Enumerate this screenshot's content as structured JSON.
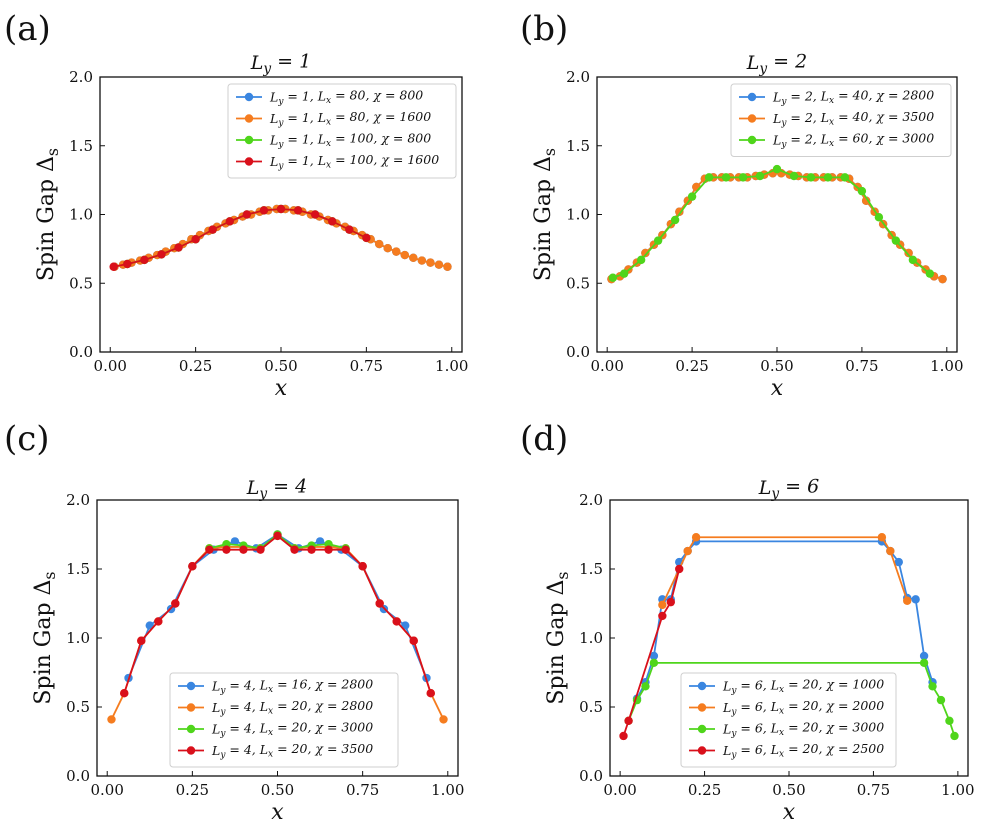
{
  "colors": {
    "blue": "#3a86e0",
    "orange": "#f57c1f",
    "green": "#4fd51b",
    "red": "#d9101b"
  },
  "chart_data": [
    {
      "type": "line",
      "panel_label": "(a)",
      "title": "L_y = 1",
      "xlabel": "x",
      "ylabel": "Spin Gap Δ_s",
      "xlim": [
        -0.03,
        1.03
      ],
      "ylim": [
        0.0,
        2.0
      ],
      "xticks": [
        "0.00",
        "0.25",
        "0.50",
        "0.75",
        "1.00"
      ],
      "yticks": [
        "0.0",
        "0.5",
        "1.0",
        "1.5",
        "2.0"
      ],
      "legend_position": "top-right",
      "series": [
        {
          "name": "L_y = 1, L_x = 80, χ = 800",
          "color": "#3a86e0",
          "x": [
            0.0125,
            0.0375,
            0.0625,
            0.0875,
            0.1125,
            0.1375,
            0.1625,
            0.1875,
            0.2125,
            0.2375,
            0.2625,
            0.2875,
            0.3125,
            0.3375,
            0.3625,
            0.3875,
            0.4125,
            0.4375,
            0.4625,
            0.4875,
            0.5125,
            0.5375,
            0.5625,
            0.5875,
            0.6125,
            0.6375,
            0.6625,
            0.6875,
            0.7125,
            0.7375,
            0.7625,
            0.7875,
            0.8125,
            0.8375,
            0.8625,
            0.8875,
            0.9125,
            0.9375,
            0.9625,
            0.9875
          ],
          "y": [
            0.62,
            0.635,
            0.65,
            0.665,
            0.685,
            0.705,
            0.73,
            0.755,
            0.785,
            0.82,
            0.85,
            0.88,
            0.91,
            0.935,
            0.96,
            0.985,
            1.0,
            1.02,
            1.03,
            1.04,
            1.04,
            1.03,
            1.02,
            1.0,
            0.985,
            0.96,
            0.935,
            0.91,
            0.88,
            0.85,
            0.82,
            0.785,
            0.755,
            0.73,
            0.705,
            0.685,
            0.665,
            0.65,
            0.635,
            0.62
          ]
        },
        {
          "name": "L_y = 1, L_x = 80, χ = 1600",
          "color": "#f57c1f",
          "x": [
            0.0125,
            0.0375,
            0.0625,
            0.0875,
            0.1125,
            0.1375,
            0.1625,
            0.1875,
            0.2125,
            0.2375,
            0.2625,
            0.2875,
            0.3125,
            0.3375,
            0.3625,
            0.3875,
            0.4125,
            0.4375,
            0.4625,
            0.4875,
            0.5125,
            0.5375,
            0.5625,
            0.5875,
            0.6125,
            0.6375,
            0.6625,
            0.6875,
            0.7125,
            0.7375,
            0.7625,
            0.7875,
            0.8125,
            0.8375,
            0.8625,
            0.8875,
            0.9125,
            0.9375,
            0.9625,
            0.9875
          ],
          "y": [
            0.62,
            0.635,
            0.65,
            0.665,
            0.685,
            0.705,
            0.73,
            0.755,
            0.785,
            0.82,
            0.85,
            0.88,
            0.91,
            0.935,
            0.96,
            0.985,
            1.0,
            1.02,
            1.03,
            1.04,
            1.04,
            1.03,
            1.02,
            1.0,
            0.985,
            0.96,
            0.935,
            0.91,
            0.88,
            0.85,
            0.82,
            0.785,
            0.755,
            0.73,
            0.705,
            0.685,
            0.665,
            0.65,
            0.635,
            0.62
          ]
        },
        {
          "name": "L_y = 1, L_x = 100, χ = 800",
          "color": "#4fd51b",
          "x": [
            0.05,
            0.1,
            0.15,
            0.2,
            0.25,
            0.3,
            0.35,
            0.4,
            0.45,
            0.5,
            0.55,
            0.6,
            0.65,
            0.7,
            0.75
          ],
          "y": [
            0.64,
            0.67,
            0.71,
            0.76,
            0.82,
            0.89,
            0.95,
            1.0,
            1.03,
            1.04,
            1.03,
            1.0,
            0.95,
            0.89,
            0.83
          ]
        },
        {
          "name": "L_y = 1, L_x = 100, χ = 1600",
          "color": "#d9101b",
          "x": [
            0.01,
            0.05,
            0.1,
            0.15,
            0.2,
            0.25,
            0.3,
            0.35,
            0.4,
            0.45,
            0.5,
            0.55,
            0.6,
            0.65,
            0.7,
            0.75
          ],
          "y": [
            0.62,
            0.64,
            0.67,
            0.71,
            0.76,
            0.82,
            0.89,
            0.95,
            1.0,
            1.03,
            1.04,
            1.03,
            1.0,
            0.95,
            0.89,
            0.83
          ]
        }
      ]
    },
    {
      "type": "line",
      "panel_label": "(b)",
      "title": "L_y = 2",
      "xlabel": "x",
      "ylabel": "Spin Gap Δ_s",
      "xlim": [
        -0.03,
        1.03
      ],
      "ylim": [
        0.0,
        2.0
      ],
      "xticks": [
        "0.00",
        "0.25",
        "0.50",
        "0.75",
        "1.00"
      ],
      "yticks": [
        "0.0",
        "0.5",
        "1.0",
        "1.5",
        "2.0"
      ],
      "legend_position": "top-right",
      "series": [
        {
          "name": "L_y = 2, L_x = 40, χ = 2800",
          "color": "#3a86e0",
          "x": [
            0.0125,
            0.0375,
            0.0625,
            0.0875,
            0.1125,
            0.1375,
            0.1625,
            0.1875,
            0.2125,
            0.2375,
            0.2625,
            0.2875,
            0.3125,
            0.3375,
            0.3625,
            0.3875,
            0.4125,
            0.4375,
            0.4625,
            0.4875,
            0.5125,
            0.5375,
            0.5625,
            0.5875,
            0.6125,
            0.6375,
            0.6625,
            0.6875,
            0.7125,
            0.7375,
            0.7625,
            0.7875,
            0.8125,
            0.8375,
            0.8625,
            0.8875,
            0.9125,
            0.9375,
            0.9625,
            0.9875
          ],
          "y": [
            0.53,
            0.55,
            0.6,
            0.65,
            0.72,
            0.78,
            0.85,
            0.93,
            1.02,
            1.1,
            1.2,
            1.26,
            1.27,
            1.27,
            1.27,
            1.27,
            1.27,
            1.28,
            1.29,
            1.3,
            1.3,
            1.29,
            1.28,
            1.27,
            1.27,
            1.27,
            1.27,
            1.27,
            1.26,
            1.2,
            1.1,
            1.02,
            0.93,
            0.85,
            0.78,
            0.72,
            0.65,
            0.6,
            0.55,
            0.53
          ]
        },
        {
          "name": "L_y = 2, L_x = 40, χ = 3500",
          "color": "#f57c1f",
          "x": [
            0.0125,
            0.0375,
            0.0625,
            0.0875,
            0.1125,
            0.1375,
            0.1625,
            0.1875,
            0.2125,
            0.2375,
            0.2625,
            0.2875,
            0.3125,
            0.3375,
            0.3625,
            0.3875,
            0.4125,
            0.4375,
            0.4625,
            0.4875,
            0.5125,
            0.5375,
            0.5625,
            0.5875,
            0.6125,
            0.6375,
            0.6625,
            0.6875,
            0.7125,
            0.7375,
            0.7625,
            0.7875,
            0.8125,
            0.8375,
            0.8625,
            0.8875,
            0.9125,
            0.9375,
            0.9625,
            0.9875
          ],
          "y": [
            0.53,
            0.55,
            0.6,
            0.65,
            0.72,
            0.78,
            0.85,
            0.93,
            1.02,
            1.1,
            1.2,
            1.26,
            1.27,
            1.27,
            1.27,
            1.27,
            1.27,
            1.28,
            1.29,
            1.3,
            1.3,
            1.29,
            1.28,
            1.27,
            1.27,
            1.27,
            1.27,
            1.27,
            1.26,
            1.2,
            1.1,
            1.02,
            0.93,
            0.85,
            0.78,
            0.72,
            0.65,
            0.6,
            0.55,
            0.53
          ]
        },
        {
          "name": "L_y = 2, L_x = 60, χ = 3000",
          "color": "#4fd51b",
          "x": [
            0.0167,
            0.05,
            0.1,
            0.15,
            0.2,
            0.25,
            0.3,
            0.35,
            0.4,
            0.45,
            0.5,
            0.55,
            0.6,
            0.65,
            0.7,
            0.75,
            0.8,
            0.85,
            0.9,
            0.95
          ],
          "y": [
            0.54,
            0.57,
            0.67,
            0.81,
            0.96,
            1.13,
            1.27,
            1.27,
            1.27,
            1.28,
            1.33,
            1.28,
            1.27,
            1.27,
            1.27,
            1.17,
            0.98,
            0.81,
            0.67,
            0.57
          ]
        }
      ]
    },
    {
      "type": "line",
      "panel_label": "(c)",
      "title": "L_y = 4",
      "xlabel": "x",
      "ylabel": "Spin Gap Δ_s",
      "xlim": [
        -0.03,
        1.03
      ],
      "ylim": [
        0.0,
        2.0
      ],
      "xticks": [
        "0.00",
        "0.25",
        "0.50",
        "0.75",
        "1.00"
      ],
      "yticks": [
        "0.0",
        "0.5",
        "1.0",
        "1.5",
        "2.0"
      ],
      "legend_position": "bottom-center",
      "series": [
        {
          "name": "L_y = 4, L_x = 16, χ = 2800",
          "color": "#3a86e0",
          "x": [
            0.0625,
            0.125,
            0.1875,
            0.25,
            0.3125,
            0.375,
            0.4375,
            0.5,
            0.5625,
            0.625,
            0.6875,
            0.75,
            0.8125,
            0.875,
            0.9375
          ],
          "y": [
            0.71,
            1.09,
            1.21,
            1.52,
            1.64,
            1.7,
            1.65,
            1.75,
            1.65,
            1.7,
            1.64,
            1.52,
            1.21,
            1.09,
            0.71
          ]
        },
        {
          "name": "L_y = 4, L_x = 20, χ = 2800",
          "color": "#f57c1f",
          "x": [
            0.0125,
            0.05,
            0.1,
            0.15,
            0.2,
            0.25,
            0.3,
            0.35,
            0.4,
            0.45,
            0.5,
            0.55,
            0.6,
            0.65,
            0.7,
            0.75,
            0.8,
            0.85,
            0.9,
            0.95,
            0.9875
          ],
          "y": [
            0.41,
            0.6,
            0.98,
            1.12,
            1.25,
            1.52,
            1.65,
            1.66,
            1.66,
            1.65,
            1.74,
            1.65,
            1.66,
            1.66,
            1.65,
            1.52,
            1.25,
            1.12,
            0.98,
            0.6,
            0.41
          ]
        },
        {
          "name": "L_y = 4, L_x = 20, χ = 3000",
          "color": "#4fd51b",
          "x": [
            0.3,
            0.35,
            0.4,
            0.45,
            0.5,
            0.55,
            0.6,
            0.65,
            0.7
          ],
          "y": [
            1.65,
            1.68,
            1.67,
            1.65,
            1.75,
            1.65,
            1.67,
            1.68,
            1.65
          ]
        },
        {
          "name": "L_y = 4, L_x = 20, χ = 3500",
          "color": "#d9101b",
          "x": [
            0.05,
            0.1,
            0.15,
            0.2,
            0.25,
            0.3,
            0.35,
            0.4,
            0.45,
            0.5,
            0.55,
            0.6,
            0.65,
            0.7,
            0.75,
            0.8,
            0.85,
            0.9,
            0.95
          ],
          "y": [
            0.6,
            0.98,
            1.12,
            1.25,
            1.52,
            1.64,
            1.64,
            1.64,
            1.64,
            1.74,
            1.64,
            1.64,
            1.64,
            1.64,
            1.52,
            1.25,
            1.12,
            0.98,
            0.6
          ]
        }
      ]
    },
    {
      "type": "line",
      "panel_label": "(d)",
      "title": "L_y = 6",
      "xlabel": "x",
      "ylabel": "Spin Gap Δ_s",
      "xlim": [
        -0.03,
        1.03
      ],
      "ylim": [
        0.0,
        2.0
      ],
      "xticks": [
        "0.00",
        "0.25",
        "0.50",
        "0.75",
        "1.00"
      ],
      "yticks": [
        "0.0",
        "0.5",
        "1.0",
        "1.5",
        "2.0"
      ],
      "legend_position": "bottom-center",
      "series": [
        {
          "name": "L_y = 6, L_x = 20, χ = 1000",
          "color": "#3a86e0",
          "x": [
            0.05,
            0.075,
            0.1,
            0.125,
            0.15,
            0.175,
            0.2,
            0.225,
            0.775,
            0.8,
            0.825,
            0.85,
            0.875,
            0.9,
            0.925
          ],
          "y": [
            0.56,
            0.68,
            0.87,
            1.28,
            1.28,
            1.55,
            1.63,
            1.7,
            1.7,
            1.63,
            1.55,
            1.29,
            1.28,
            0.87,
            0.68
          ]
        },
        {
          "name": "L_y = 6, L_x = 20, χ = 2000",
          "color": "#f57c1f",
          "x": [
            0.125,
            0.2,
            0.225,
            0.775,
            0.8,
            0.85
          ],
          "y": [
            1.24,
            1.63,
            1.73,
            1.73,
            1.63,
            1.27
          ]
        },
        {
          "name": "L_y = 6, L_x = 20, χ = 3000",
          "color": "#4fd51b",
          "x": [
            0.025,
            0.05,
            0.075,
            0.1,
            0.9,
            0.925,
            0.95,
            0.975,
            0.99
          ],
          "y": [
            0.4,
            0.55,
            0.65,
            0.82,
            0.82,
            0.65,
            0.55,
            0.4,
            0.29
          ]
        },
        {
          "name": "L_y = 6, L_x = 20, χ = 2500",
          "color": "#d9101b",
          "x": [
            0.01,
            0.025,
            0.125,
            0.15,
            0.175
          ],
          "y": [
            0.29,
            0.4,
            1.16,
            1.26,
            1.5
          ]
        }
      ]
    }
  ]
}
